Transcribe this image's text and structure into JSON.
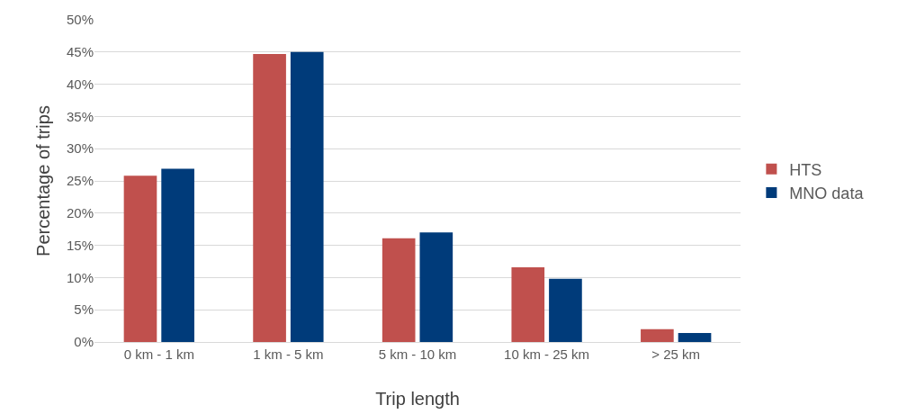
{
  "chart_data": {
    "type": "bar",
    "xlabel": "Trip length",
    "ylabel": "Percentage of trips",
    "categories": [
      "0 km - 1 km",
      "1 km - 5 km",
      "5 km - 10 km",
      "10 km - 25 km",
      "> 25 km"
    ],
    "series": [
      {
        "name": "HTS",
        "color": "#c0504d",
        "values": [
          25.8,
          44.7,
          16.1,
          11.6,
          2.0
        ]
      },
      {
        "name": "MNO data",
        "color": "#003b7a",
        "values": [
          26.9,
          45.0,
          17.0,
          9.8,
          1.4
        ]
      }
    ],
    "ylim": [
      0,
      50
    ],
    "yticks": [
      {
        "value": 0,
        "label": "0%"
      },
      {
        "value": 5,
        "label": "5%"
      },
      {
        "value": 10,
        "label": "10%"
      },
      {
        "value": 15,
        "label": "15%"
      },
      {
        "value": 20,
        "label": "20%"
      },
      {
        "value": 25,
        "label": "25%"
      },
      {
        "value": 30,
        "label": "30%"
      },
      {
        "value": 35,
        "label": "35%"
      },
      {
        "value": 40,
        "label": "40%"
      },
      {
        "value": 45,
        "label": "45%"
      },
      {
        "value": 50,
        "label": "50%"
      }
    ],
    "grid": "y",
    "legend": "right"
  }
}
